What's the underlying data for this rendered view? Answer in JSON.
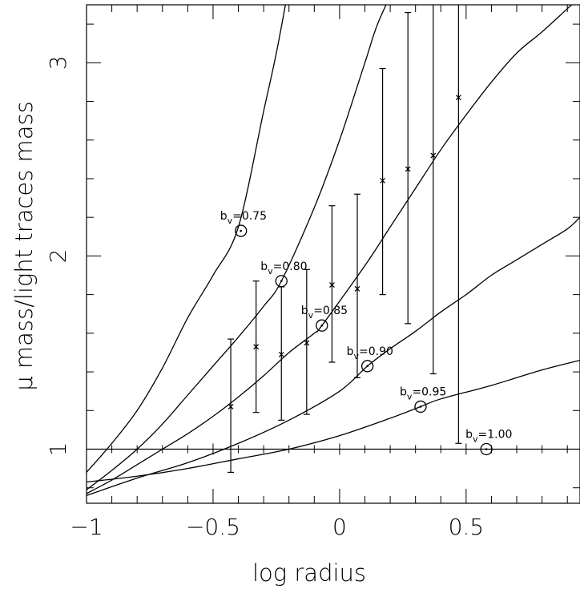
{
  "chart_data": {
    "type": "line",
    "xlabel": "log radius",
    "ylabel": "μ mass/light traces mass",
    "xlim": [
      -1,
      0.95
    ],
    "ylim": [
      0.72,
      3.3
    ],
    "x_ticks": [
      -1,
      -0.5,
      0,
      0.5
    ],
    "x_tick_labels": [
      "−1",
      "−0.5",
      "0",
      "0.5"
    ],
    "y_ticks": [
      1,
      2,
      3
    ],
    "y_tick_labels": [
      "1",
      "2",
      "3"
    ],
    "reference_line_y": 1,
    "series": [
      {
        "label_base": "b",
        "label_sub": "v",
        "label_value": "=0.75",
        "marker": {
          "x": -0.39,
          "y": 2.13
        },
        "x": [
          -1.0,
          -0.9,
          -0.8,
          -0.7,
          -0.6,
          -0.5,
          -0.4,
          -0.3,
          -0.25,
          -0.2
        ],
        "y": [
          0.88,
          1.03,
          1.2,
          1.42,
          1.68,
          1.9,
          2.15,
          2.75,
          3.05,
          3.4
        ]
      },
      {
        "label_base": "b",
        "label_sub": "v",
        "label_value": "=0.80",
        "marker": {
          "x": -0.23,
          "y": 1.87
        },
        "x": [
          -1.0,
          -0.9,
          -0.8,
          -0.7,
          -0.6,
          -0.5,
          -0.4,
          -0.3,
          -0.23,
          -0.1,
          0.0,
          0.1,
          0.15,
          0.22
        ],
        "y": [
          0.79,
          0.89,
          1.0,
          1.13,
          1.28,
          1.43,
          1.58,
          1.74,
          1.87,
          2.25,
          2.6,
          3.0,
          3.2,
          3.4
        ]
      },
      {
        "label_base": "b",
        "label_sub": "v",
        "label_value": "=0.85",
        "marker": {
          "x": -0.07,
          "y": 1.64
        },
        "x": [
          -1.0,
          -0.9,
          -0.8,
          -0.7,
          -0.6,
          -0.5,
          -0.4,
          -0.3,
          -0.2,
          -0.1,
          -0.07,
          0.1,
          0.2,
          0.3,
          0.4,
          0.5,
          0.6,
          0.7,
          0.8,
          0.9,
          0.95
        ],
        "y": [
          0.77,
          0.84,
          0.92,
          1.0,
          1.08,
          1.17,
          1.27,
          1.38,
          1.5,
          1.6,
          1.64,
          1.95,
          2.15,
          2.35,
          2.55,
          2.73,
          2.9,
          3.05,
          3.16,
          3.28,
          3.34
        ]
      },
      {
        "label_base": "b",
        "label_sub": "v",
        "label_value": "=0.90",
        "marker": {
          "x": 0.11,
          "y": 1.43
        },
        "x": [
          -1.0,
          -0.8,
          -0.6,
          -0.4,
          -0.2,
          0.0,
          0.11,
          0.2,
          0.3,
          0.4,
          0.5,
          0.6,
          0.7,
          0.8,
          0.9,
          0.95
        ],
        "y": [
          0.76,
          0.85,
          0.93,
          1.03,
          1.15,
          1.3,
          1.43,
          1.52,
          1.61,
          1.71,
          1.8,
          1.9,
          1.98,
          2.06,
          2.14,
          2.2
        ]
      },
      {
        "label_base": "b",
        "label_sub": "v",
        "label_value": "=0.95",
        "marker": {
          "x": 0.32,
          "y": 1.22
        },
        "x": [
          -1.0,
          -0.8,
          -0.6,
          -0.4,
          -0.2,
          0.0,
          0.2,
          0.32,
          0.4,
          0.6,
          0.8,
          0.95
        ],
        "y": [
          0.83,
          0.86,
          0.9,
          0.95,
          1.0,
          1.07,
          1.16,
          1.22,
          1.26,
          1.33,
          1.41,
          1.46
        ]
      },
      {
        "label_base": "b",
        "label_sub": "v",
        "label_value": "=1.00",
        "marker": {
          "x": 0.58,
          "y": 1.0
        },
        "x": [
          -1.0,
          0.95
        ],
        "y": [
          1.0,
          1.0
        ]
      }
    ],
    "data_points": {
      "x": [
        -0.43,
        -0.33,
        -0.23,
        -0.13,
        -0.03,
        0.07,
        0.17,
        0.27,
        0.37,
        0.47
      ],
      "y": [
        1.22,
        1.53,
        1.49,
        1.55,
        1.85,
        1.83,
        2.39,
        2.45,
        2.52,
        2.82
      ],
      "err_low": [
        0.88,
        1.19,
        1.15,
        1.18,
        1.45,
        1.37,
        1.8,
        1.65,
        1.39,
        1.03
      ],
      "err_high": [
        1.57,
        1.87,
        1.84,
        1.93,
        2.26,
        2.32,
        2.97,
        3.26,
        3.3,
        3.3
      ]
    }
  }
}
